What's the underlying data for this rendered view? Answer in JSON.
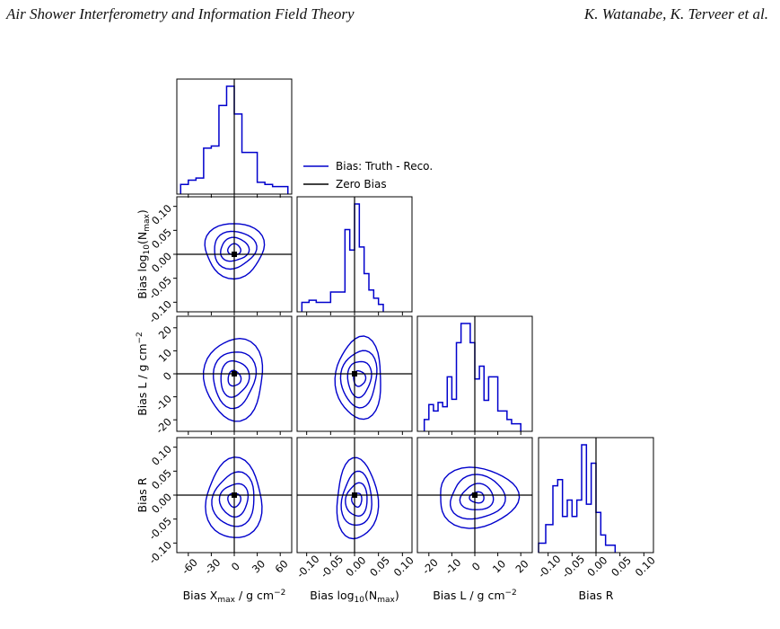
{
  "header": {
    "title": "Air Shower Interferometry and Information Field Theory",
    "authors": "K. Watanabe, K. Terveer et al."
  },
  "figure": {
    "line_color": "#0000cc",
    "legend": [
      "Bias: Truth - Reco.",
      "Zero Bias"
    ],
    "variables": [
      {
        "label": "Bias X",
        "label_sub": "max",
        "label_unit": " / g cm",
        "label_sup": "−2",
        "range": [
          -75,
          75
        ],
        "ticks": [
          "-60",
          "-30",
          "0",
          "30",
          "60"
        ],
        "tick_values": [
          -60,
          -30,
          0,
          30,
          60
        ]
      },
      {
        "label": "Bias log",
        "label_sub": "10",
        "label_mid": "(N",
        "label_sub2": "max",
        "label_end": ")",
        "range": [
          -0.12,
          0.12
        ],
        "ticks": [
          "-0.10",
          "-0.05",
          "0.00",
          "0.05",
          "0.10"
        ],
        "tick_values": [
          -0.1,
          -0.05,
          0.0,
          0.05,
          0.1
        ]
      },
      {
        "label": "Bias L / g cm",
        "label_sup": "−2",
        "range": [
          -25,
          25
        ],
        "ticks": [
          "-20",
          "-10",
          "0",
          "10",
          "20"
        ],
        "tick_values": [
          -20,
          -10,
          0,
          10,
          20
        ]
      },
      {
        "label": "Bias R",
        "range": [
          -0.12,
          0.12
        ],
        "ticks": [
          "-0.10",
          "-0.05",
          "0.00",
          "0.05",
          "0.10"
        ],
        "tick_values": [
          -0.1,
          -0.05,
          0.0,
          0.05,
          0.1
        ]
      }
    ]
  },
  "chart_data": {
    "type": "corner",
    "title": "",
    "legend": [
      "Bias: Truth - Reco.",
      "Zero Bias"
    ],
    "histograms": [
      {
        "variable": "Bias Xmax / g cm−2",
        "bin_edges": [
          -70,
          -60,
          -50,
          -40,
          -30,
          -20,
          -10,
          0,
          10,
          20,
          30,
          40,
          50,
          60,
          70
        ],
        "counts": [
          0.04,
          0.08,
          0.1,
          0.38,
          0.4,
          0.78,
          0.96,
          0.7,
          0.34,
          0.34,
          0.06,
          0.04,
          0.02,
          0.02
        ]
      },
      {
        "variable": "Bias log10(Nmax)",
        "bin_edges": [
          -0.11,
          -0.095,
          -0.08,
          -0.065,
          -0.05,
          -0.035,
          -0.02,
          -0.01,
          0.0,
          0.01,
          0.02,
          0.03,
          0.04,
          0.05,
          0.06
        ],
        "counts": [
          0.04,
          0.06,
          0.04,
          0.04,
          0.14,
          0.14,
          0.75,
          0.55,
          1.0,
          0.58,
          0.32,
          0.16,
          0.08,
          0.02
        ]
      },
      {
        "variable": "Bias L / g cm−2",
        "bin_edges": [
          -22,
          -20,
          -18,
          -16,
          -14,
          -12,
          -10,
          -8,
          -6,
          -4,
          -2,
          0,
          2,
          4,
          6,
          8,
          10,
          12,
          14,
          16,
          18,
          20
        ],
        "counts": [
          0.06,
          0.2,
          0.14,
          0.22,
          0.18,
          0.46,
          0.25,
          0.78,
          0.96,
          0.96,
          0.78,
          0.44,
          0.56,
          0.24,
          0.46,
          0.46,
          0.14,
          0.14,
          0.06,
          0.02,
          0.02
        ]
      },
      {
        "variable": "Bias R",
        "bin_edges": [
          -0.12,
          -0.105,
          -0.09,
          -0.08,
          -0.07,
          -0.06,
          -0.05,
          -0.04,
          -0.03,
          -0.02,
          -0.01,
          0.0,
          0.01,
          0.02,
          0.03,
          0.04
        ],
        "counts": [
          0.04,
          0.22,
          0.6,
          0.66,
          0.3,
          0.46,
          0.3,
          0.46,
          1.0,
          0.42,
          0.82,
          0.34,
          0.12,
          0.02,
          0.02
        ]
      }
    ],
    "contours_2d": [
      {
        "x": "Bias Xmax",
        "y": "Bias log10(Nmax)",
        "center": [
          0,
          0.01
        ],
        "radii": [
          [
            8,
            0.012
          ],
          [
            18,
            0.025
          ],
          [
            28,
            0.038
          ],
          [
            40,
            0.055
          ]
        ]
      },
      {
        "x": "Bias Xmax",
        "y": "Bias L",
        "center": [
          0,
          -2
        ],
        "radii": [
          [
            8,
            3.5
          ],
          [
            18,
            8
          ],
          [
            28,
            12
          ],
          [
            40,
            17
          ]
        ]
      },
      {
        "x": "Bias log10(Nmax)",
        "y": "Bias L",
        "center": [
          0.01,
          -2
        ],
        "radii": [
          [
            0.012,
            3.5
          ],
          [
            0.024,
            8
          ],
          [
            0.038,
            12
          ],
          [
            0.05,
            17
          ]
        ]
      },
      {
        "x": "Bias Xmax",
        "y": "Bias R",
        "center": [
          0,
          -0.01
        ],
        "radii": [
          [
            8,
            0.015
          ],
          [
            18,
            0.035
          ],
          [
            28,
            0.055
          ],
          [
            38,
            0.08
          ]
        ]
      },
      {
        "x": "Bias log10(Nmax)",
        "y": "Bias R",
        "center": [
          0.005,
          -0.01
        ],
        "radii": [
          [
            0.01,
            0.015
          ],
          [
            0.022,
            0.035
          ],
          [
            0.032,
            0.055
          ],
          [
            0.045,
            0.08
          ]
        ]
      },
      {
        "x": "Bias L",
        "y": "Bias R",
        "center": [
          1,
          -0.005
        ],
        "radii": [
          [
            3,
            0.012
          ],
          [
            7,
            0.028
          ],
          [
            12,
            0.045
          ],
          [
            18,
            0.06
          ]
        ]
      }
    ],
    "truth_lines_at": [
      0,
      0,
      0,
      0
    ]
  }
}
